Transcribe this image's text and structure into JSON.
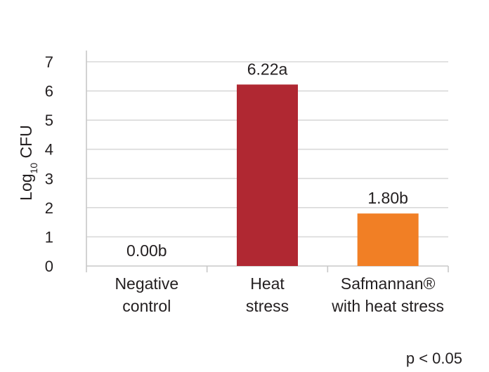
{
  "chart_data": {
    "type": "bar",
    "ylabel": {
      "main": "Log",
      "subscript": "10",
      "suffix": " CFU"
    },
    "ylim": [
      0,
      7
    ],
    "yticks": [
      0,
      1,
      2,
      3,
      4,
      5,
      6,
      7
    ],
    "grid": true,
    "categories": [
      {
        "lines": [
          "Negative",
          "control"
        ]
      },
      {
        "lines": [
          "Heat",
          "stress"
        ]
      },
      {
        "lines": [
          "Safmannan®",
          "with heat stress"
        ]
      }
    ],
    "values": [
      0.0,
      6.22,
      1.8
    ],
    "data_labels": [
      "0.00b",
      "6.22a",
      "1.80b"
    ],
    "colors": [
      "#b02832",
      "#b02832",
      "#f17f25"
    ]
  },
  "footnote": "p < 0.05"
}
